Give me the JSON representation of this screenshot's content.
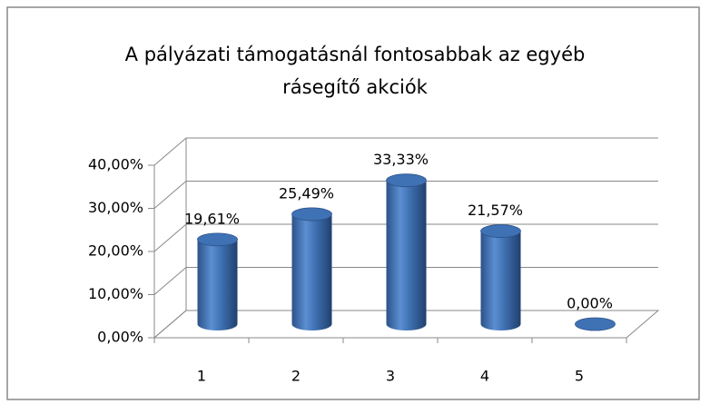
{
  "chart_data": {
    "type": "bar3d",
    "title": "A pályázati támogatásnál fontosabbak az egyéb rásegítő akciók",
    "categories": [
      "1",
      "2",
      "3",
      "4",
      "5"
    ],
    "values": [
      19.61,
      25.49,
      33.33,
      21.57,
      0
    ],
    "value_labels": [
      "19,61%",
      "25,49%",
      "33,33%",
      "21,57%",
      "0,00%"
    ],
    "color": "#4a7ebb",
    "ylim": [
      0,
      40
    ],
    "yticks": [
      {
        "value": 0,
        "label": "0,00%"
      },
      {
        "value": 10,
        "label": "10,00%"
      },
      {
        "value": 20,
        "label": "20,00%"
      },
      {
        "value": 30,
        "label": "30,00%"
      },
      {
        "value": 40,
        "label": "40,00%"
      }
    ],
    "grid": true
  }
}
